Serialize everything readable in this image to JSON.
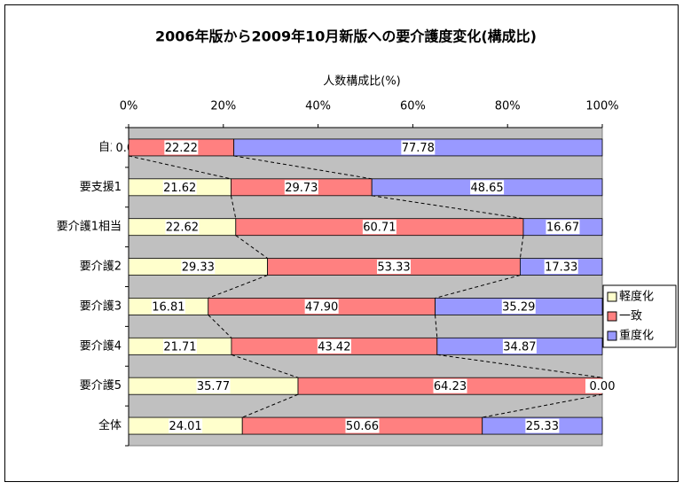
{
  "chart_data": {
    "type": "stacked_barh",
    "title": "2006年版から2009年10月新版への要介護度変化(構成比)",
    "xlabel": "人数構成比(%)",
    "categories": [
      "自立",
      "要支援1",
      "要介護1相当",
      "要介護2",
      "要介護3",
      "要介護4",
      "要介護5",
      "全体"
    ],
    "series": [
      {
        "name": "軽度化",
        "color": "#ffffcc",
        "values": [
          0,
          21.62,
          22.62,
          29.33,
          16.81,
          21.71,
          35.77,
          24.01
        ],
        "value_labels": [
          "0.00",
          "21.62",
          "22.62",
          "29.33",
          "16.81",
          "21.71",
          "35.77",
          "24.01"
        ]
      },
      {
        "name": "一致",
        "color": "#ff8080",
        "values": [
          22.22,
          29.73,
          60.71,
          53.33,
          47.9,
          43.42,
          64.23,
          50.66
        ],
        "value_labels": [
          "22.22",
          "29.73",
          "60.71",
          "53.33",
          "47.90",
          "43.42",
          "64.23",
          "50.66"
        ]
      },
      {
        "name": "重度化",
        "color": "#9999ff",
        "values": [
          77.78,
          48.65,
          16.67,
          17.33,
          35.29,
          34.87,
          0,
          25.33
        ],
        "value_labels": [
          "77.78",
          "48.65",
          "16.67",
          "17.33",
          "35.29",
          "34.87",
          "0.00",
          "25.33"
        ]
      }
    ],
    "xlim": [
      0,
      100
    ],
    "xticks": [
      {
        "value": 0,
        "label": "0%"
      },
      {
        "value": 20,
        "label": "20%"
      },
      {
        "value": 40,
        "label": "40%"
      },
      {
        "value": 60,
        "label": "60%"
      },
      {
        "value": 80,
        "label": "80%"
      },
      {
        "value": 100,
        "label": "100%"
      }
    ],
    "legend": "right",
    "plot_background": "#c0c0c0"
  }
}
